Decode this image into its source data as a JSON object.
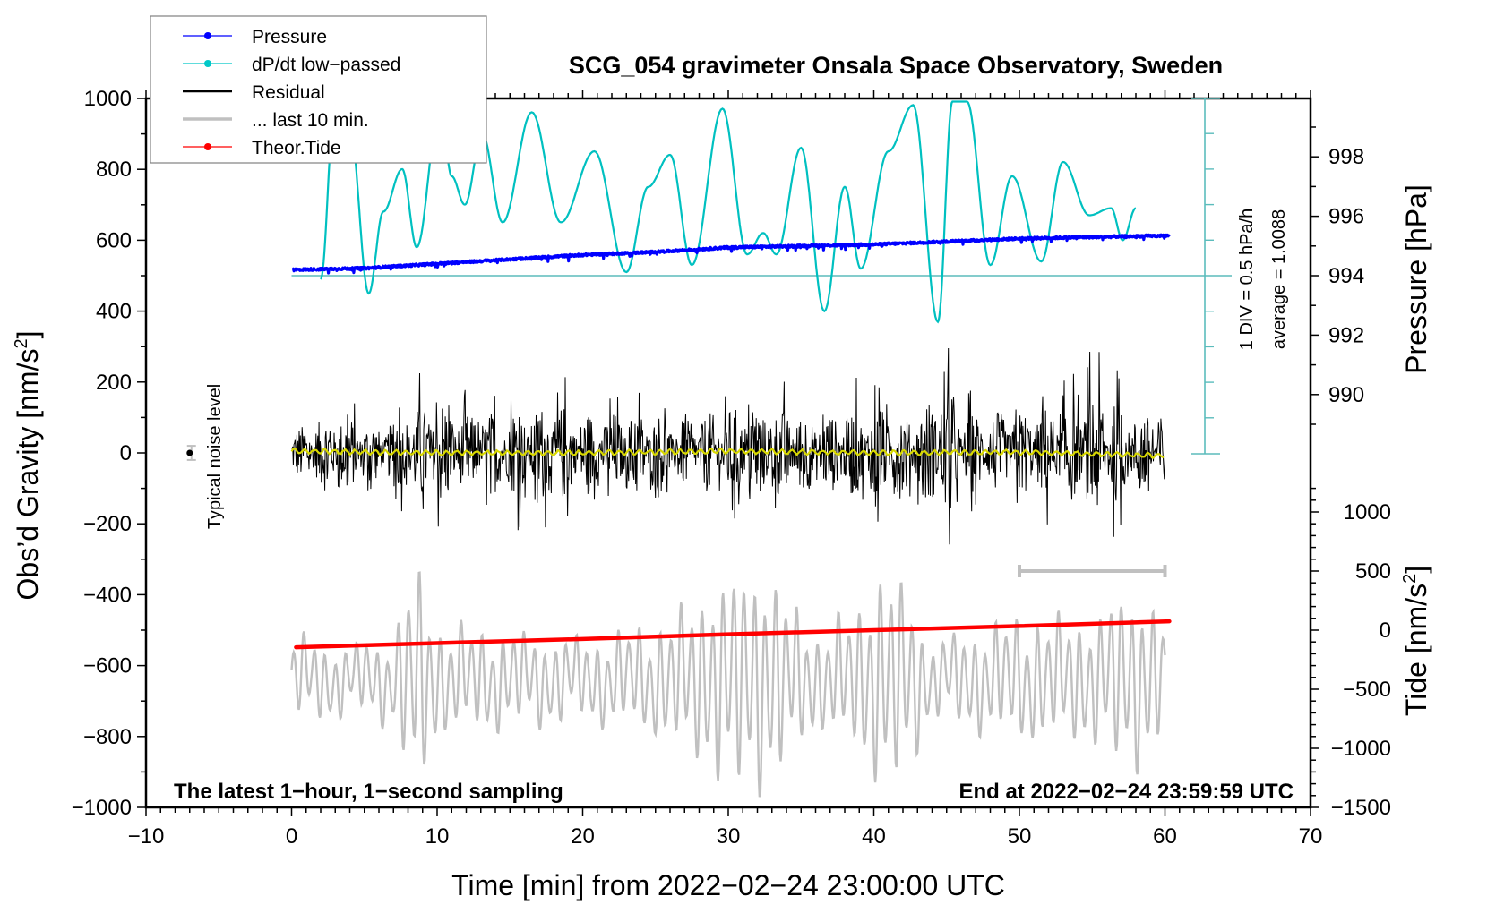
{
  "chart_data": {
    "type": "line",
    "title": "SCG_054 gravimeter Onsala Space Observatory, Sweden",
    "xlabel": "Time [min] from 2022−02−24 23:00:00 UTC",
    "ylabel_left": "Obs’d Gravity [nm/s",
    "ylabel_left_sup": "2",
    "ylabel_left_end": "]",
    "ylabel_right_top": "Pressure [hPa]",
    "ylabel_right_bottom": "Tide [nm/s",
    "ylabel_right_bottom_sup": "2",
    "ylabel_right_bottom_end": "]",
    "xlim": [
      -10,
      70
    ],
    "ylim_left": [
      -1000,
      1000
    ],
    "ylim_right_pressure": [
      988.5,
      999.5
    ],
    "ylim_right_tide": [
      -1500,
      1000
    ],
    "x_ticks": [
      -10,
      0,
      10,
      20,
      30,
      40,
      50,
      60,
      70
    ],
    "x_tick_labels": [
      "−10",
      "0",
      "10",
      "20",
      "30",
      "40",
      "50",
      "60",
      "70"
    ],
    "y_left_ticks": [
      1000,
      800,
      600,
      400,
      200,
      0,
      -200,
      -400,
      -600,
      -800,
      -1000
    ],
    "y_left_tick_labels": [
      "1000",
      "800",
      "600",
      "400",
      "200",
      "0",
      "−200",
      "−400",
      "−600",
      "−800",
      "−1000"
    ],
    "pressure_ticks": [
      998,
      996,
      994,
      992,
      990
    ],
    "pressure_tick_labels": [
      "998",
      "996",
      "994",
      "992",
      "990"
    ],
    "tide_ticks": [
      1000,
      500,
      0,
      -500,
      -1000,
      -1500
    ],
    "tide_tick_labels": [
      "1000",
      "500",
      "0",
      "−500",
      "−1000",
      "−1500"
    ],
    "grid": false,
    "legend": {
      "placement": "top-left",
      "entries": [
        {
          "label": "Pressure",
          "color": "#0000ff",
          "style": "line-dot"
        },
        {
          "label": "dP/dt low−passed",
          "color": "#00c8c8",
          "style": "line-dot"
        },
        {
          "label": "Residual",
          "color": "#000000",
          "style": "line"
        },
        {
          "label": "... last 10 min.",
          "color": "#c0c0c0",
          "style": "line"
        },
        {
          "label": "Theor.Tide",
          "color": "#ff0000",
          "style": "line-dot"
        }
      ]
    },
    "annotations": {
      "bottom_left": "The latest 1−hour, 1−second sampling",
      "bottom_right": "End at 2022−02−24 23:59:59 UTC",
      "dpdt_scale": "1 DIV = 0.5 hPa/h",
      "dpdt_average": "average = 1.0088",
      "noise_label": "Typical noise level",
      "noise_level": {
        "x": -7,
        "value": 0,
        "error": 20
      },
      "last10_bar": {
        "from": 50,
        "to": 60
      }
    },
    "series": [
      {
        "name": "Pressure",
        "axis": "pressure",
        "color": "#0000ff",
        "x": [
          0.1,
          5,
          10,
          15,
          20,
          25,
          30,
          35,
          40,
          45,
          50,
          55,
          60.3
        ],
        "values": [
          994.2,
          994.25,
          994.4,
          994.55,
          994.7,
          994.8,
          994.95,
          995.0,
          995.05,
          995.15,
          995.25,
          995.3,
          995.35
        ]
      },
      {
        "name": "dP/dt low-passed",
        "axis": "dpdt_div",
        "color": "#00c0c0",
        "x": [
          2.0,
          3.0,
          4.0,
          5.3,
          6.3,
          7.6,
          8.6,
          10.2,
          11.0,
          11.9,
          13.1,
          14.5,
          16.5,
          18.5,
          20.8,
          23.0,
          24.5,
          26.0,
          27.5,
          29.6,
          31.3,
          32.4,
          33.3,
          35.0,
          36.6,
          38.0,
          39.1,
          41.0,
          42.7,
          44.4,
          45.4,
          46.4,
          48.0,
          49.5,
          51.5,
          53.0,
          54.8,
          56.3,
          57.1,
          58.0
        ],
        "values": [
          -0.1,
          5.0,
          4.2,
          -0.5,
          1.8,
          3.0,
          0.8,
          4.8,
          2.8,
          2.0,
          4.0,
          1.5,
          4.6,
          1.5,
          3.5,
          0.1,
          2.5,
          3.4,
          0.3,
          4.7,
          0.6,
          1.2,
          0.6,
          3.6,
          -1.0,
          2.5,
          0.2,
          3.5,
          4.8,
          -1.3,
          4.9,
          4.9,
          0.3,
          2.8,
          0.4,
          3.2,
          1.7,
          1.9,
          1.0,
          1.9
        ]
      },
      {
        "name": "Residual",
        "axis": "left",
        "color": "#000000",
        "x_range": [
          0,
          60
        ],
        "envelope_x": [
          0,
          3,
          6,
          9,
          10,
          12,
          15,
          18,
          21,
          24,
          27,
          30,
          33,
          36,
          39,
          41,
          43,
          44.5,
          46,
          48,
          50,
          52,
          54,
          55,
          57,
          59,
          60
        ],
        "envelope_amp": [
          120,
          220,
          150,
          250,
          300,
          200,
          220,
          260,
          200,
          230,
          170,
          240,
          240,
          200,
          230,
          260,
          200,
          380,
          200,
          210,
          220,
          240,
          260,
          360,
          240,
          220,
          240
        ]
      },
      {
        "name": "Residual smoothed",
        "axis": "left",
        "color": "#d8d800",
        "x": [
          0,
          10,
          20,
          30,
          40,
          50,
          60
        ],
        "values": [
          5,
          0,
          0,
          5,
          0,
          2,
          -8
        ]
      },
      {
        "name": "... last 10 min.",
        "axis": "left",
        "color": "#c0c0c0",
        "x_range": [
          0,
          60
        ],
        "baseline": -640,
        "envelope_x": [
          0,
          4,
          7,
          8,
          9,
          10,
          13,
          20,
          25,
          28,
          30,
          31,
          32,
          33,
          34,
          36,
          39,
          40,
          41,
          42,
          44,
          46,
          50,
          55,
          57,
          59,
          60
        ],
        "envelope_amp": [
          120,
          90,
          120,
          280,
          300,
          150,
          140,
          110,
          150,
          230,
          300,
          300,
          310,
          300,
          230,
          130,
          200,
          290,
          300,
          280,
          100,
          130,
          170,
          170,
          240,
          240,
          120
        ]
      },
      {
        "name": "Theor.Tide",
        "axis": "tide",
        "color": "#ff0000",
        "x": [
          0.3,
          10,
          20,
          30,
          40,
          50,
          60.3
        ],
        "values": [
          -145,
          -110,
          -75,
          -35,
          0,
          35,
          75
        ]
      }
    ]
  }
}
